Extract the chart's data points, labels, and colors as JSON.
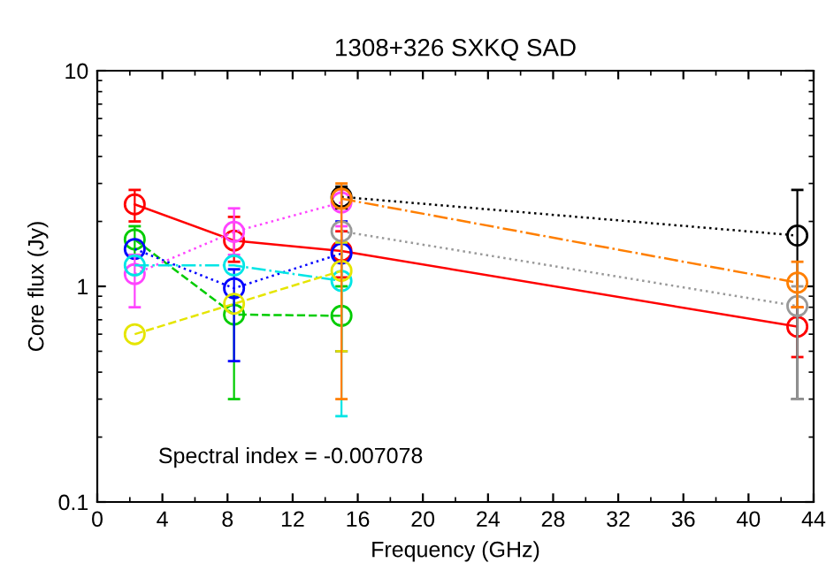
{
  "chart_data": {
    "type": "line",
    "title": "1308+326 SXKQ SAD",
    "xlabel": "Frequency (GHz)",
    "ylabel": "Core flux (Jy)",
    "annotations": [
      "Spectral index = -0.007078"
    ],
    "log": "y",
    "xlim": [
      0,
      44
    ],
    "ylim": [
      0.1,
      10
    ],
    "xticks": [
      0,
      4,
      8,
      12,
      16,
      20,
      24,
      28,
      32,
      36,
      40,
      44
    ],
    "yticks": [
      0.1,
      1,
      10
    ],
    "marker": "circle",
    "grid": false,
    "legend": false,
    "series": [
      {
        "color": "#ff0000",
        "line_style": "solid",
        "x": [
          2.3,
          8.4,
          15,
          43
        ],
        "values": [
          2.4,
          1.63,
          1.46,
          0.65
        ],
        "errors": [
          [
            2.0,
            2.8
          ],
          [
            1.3,
            2.1
          ],
          [
            1.1,
            1.8
          ],
          [
            0.47,
            0.8
          ]
        ]
      },
      {
        "color": "#00cc00",
        "line_style": "dashed",
        "x": [
          2.3,
          8.4,
          15
        ],
        "values": [
          1.65,
          0.74,
          0.73
        ],
        "errors": [
          [
            1.4,
            1.9
          ],
          [
            0.3,
            0.9
          ],
          [
            0.5,
            1.0
          ]
        ]
      },
      {
        "color": "#0000ff",
        "line_style": "dotted",
        "x": [
          2.3,
          8.4,
          15
        ],
        "values": [
          1.49,
          0.98,
          1.42
        ],
        "errors": [
          null,
          [
            0.45,
            1.2
          ],
          [
            0.5,
            2.0
          ]
        ]
      },
      {
        "color": "#ff44ff",
        "line_style": "dotted",
        "x": [
          2.3,
          8.4,
          15
        ],
        "values": [
          1.14,
          1.79,
          2.45
        ],
        "errors": [
          [
            0.8,
            1.4
          ],
          [
            1.4,
            2.3
          ],
          [
            1.9,
            2.8
          ]
        ]
      },
      {
        "color": "#00e5e5",
        "line_style": "dashdot",
        "x": [
          2.3,
          8.4,
          15
        ],
        "values": [
          1.25,
          1.25,
          1.06
        ],
        "errors": [
          null,
          null,
          [
            0.25,
            1.6
          ]
        ]
      },
      {
        "color": "#e5e500",
        "line_style": "dashed",
        "x": [
          2.3,
          8.4,
          15
        ],
        "values": [
          0.6,
          0.83,
          1.18
        ],
        "errors": [
          null,
          null,
          [
            0.5,
            1.6
          ]
        ]
      },
      {
        "color": "#000000",
        "line_style": "dotted",
        "x": [
          15,
          43
        ],
        "values": [
          2.6,
          1.72
        ],
        "errors": [
          [
            2.3,
            2.9
          ],
          [
            0.3,
            2.8
          ]
        ]
      },
      {
        "color": "#999999",
        "line_style": "dotted",
        "x": [
          15,
          43
        ],
        "values": [
          1.8,
          0.81
        ],
        "errors": [
          null,
          [
            0.3,
            1.0
          ]
        ]
      },
      {
        "color": "#ff7f00",
        "line_style": "dashdot",
        "x": [
          15,
          43
        ],
        "values": [
          2.55,
          1.04
        ],
        "errors": [
          [
            0.3,
            3.0
          ],
          [
            0.8,
            1.3
          ]
        ]
      }
    ]
  }
}
